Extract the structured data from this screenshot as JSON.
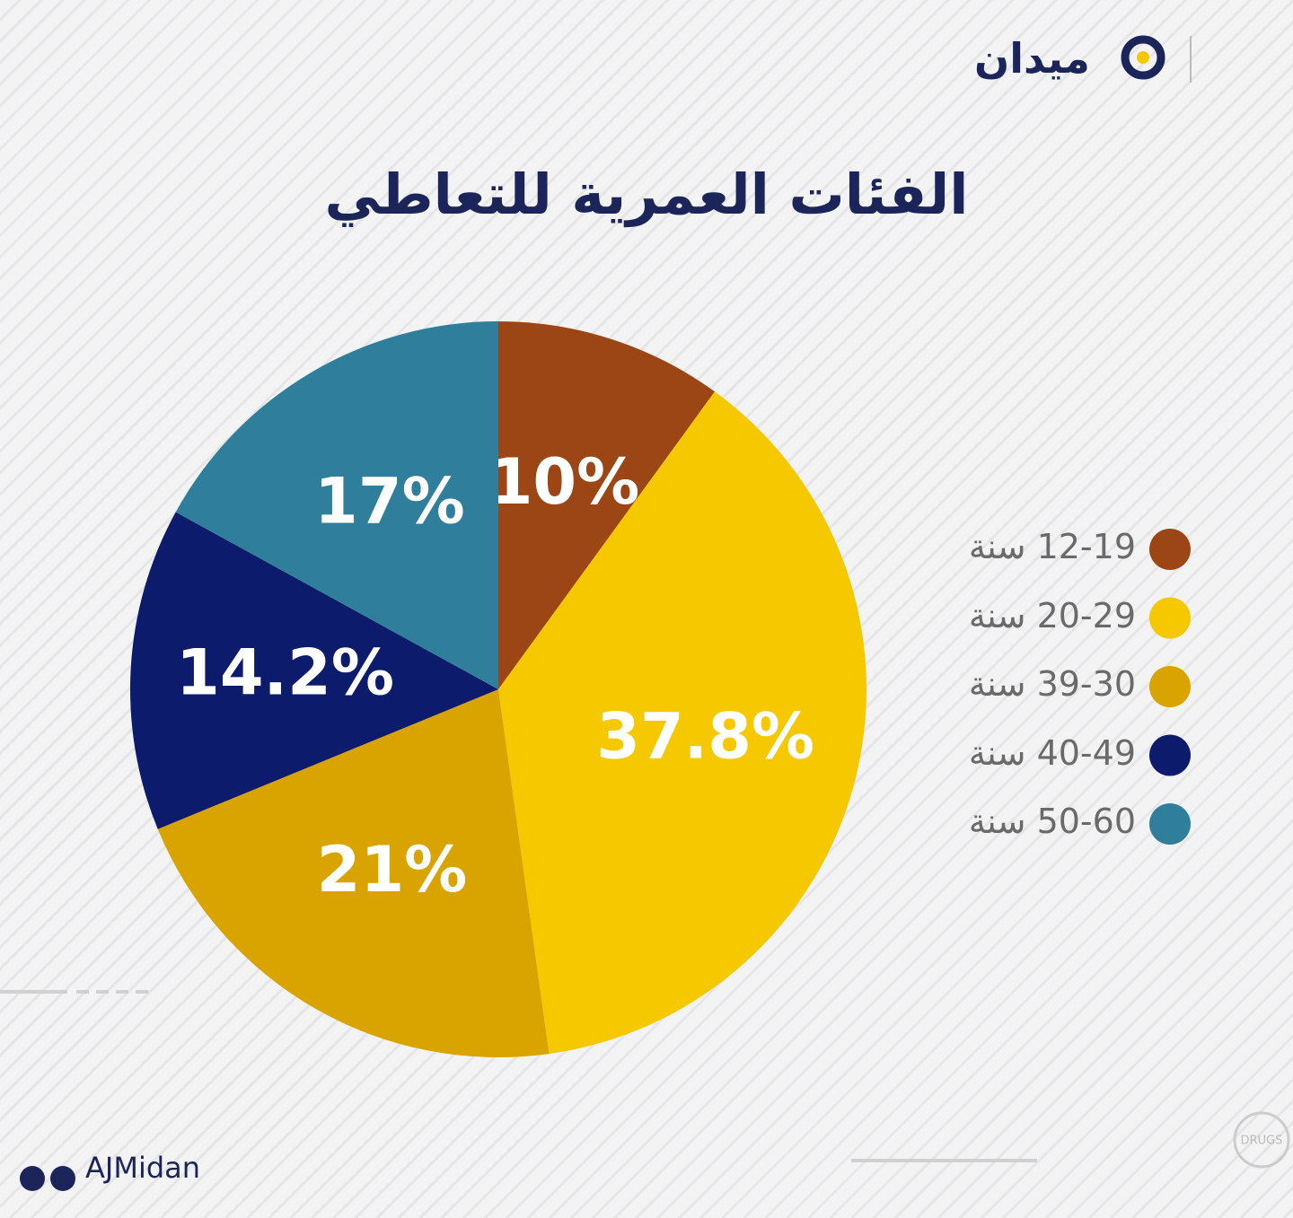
{
  "brand": "ميدان",
  "footer": "AJMidan",
  "icon_text": "DRUGS",
  "chart_data": {
    "type": "pie",
    "title": "الفئات العمرية للتعاطي",
    "categories": [
      "12-19 سنة",
      "20-29 سنة",
      "39-30 سنة",
      "40-49 سنة",
      "50-60 سنة"
    ],
    "values": [
      10,
      37.8,
      21,
      14.2,
      17
    ],
    "value_labels": [
      "10%",
      "37.8%",
      "21%",
      "14.2%",
      "17%"
    ],
    "colors": [
      "#9c4615",
      "#f5c800",
      "#d9a300",
      "#0c1b6b",
      "#2e7e9c"
    ]
  }
}
